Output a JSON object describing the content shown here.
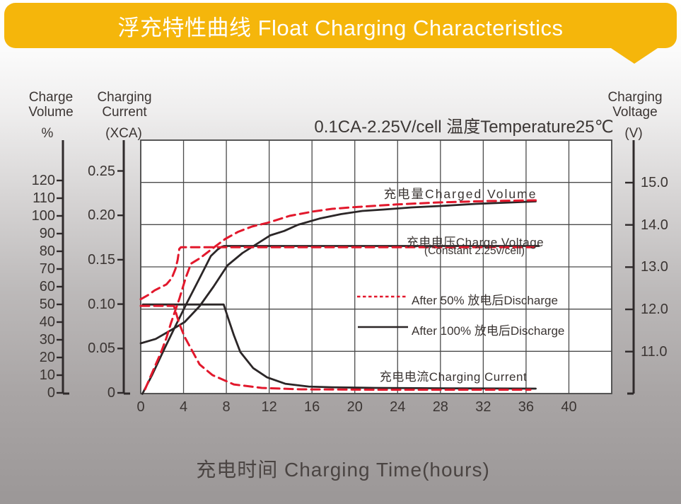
{
  "banner": {
    "title": "浮充特性曲线 Float Charging Characteristics",
    "color": "#f5b60b"
  },
  "subtitle": "0.1CA-2.25V/cell   温度Temperature25℃",
  "axis_headers": {
    "volume": {
      "line1": "Charge",
      "line2": "Volume",
      "unit": "%"
    },
    "current": {
      "line1": "Charging",
      "line2": "Current",
      "unit": "(XCA)"
    },
    "voltage": {
      "line1": "Charging",
      "line2": "Voltage",
      "unit": "(V)"
    }
  },
  "x_axis_title": "充电时间 Charging Time(hours)",
  "colors": {
    "red_curve": "#e2182c",
    "black_curve": "#2b2627",
    "grid": "#4b4b4b"
  },
  "chart_data": {
    "type": "line",
    "title": "浮充特性曲线 Float Charging Characteristics",
    "condition": "0.1CA-2.25V/cell 温度Temperature25℃",
    "x_axis": {
      "label": "充电时间 Charging Time(hours)",
      "ticks": [
        "0",
        "4",
        "8",
        "12",
        "16",
        "20",
        "24",
        "28",
        "32",
        "36",
        "40"
      ],
      "range": [
        0,
        44
      ],
      "unit": "hours"
    },
    "y_axes": {
      "charge_volume": {
        "label": "Charge Volume",
        "unit": "%",
        "ticks": [
          "120",
          "110",
          "100",
          "90",
          "80",
          "70",
          "60",
          "50",
          "40",
          "30",
          "20",
          "10",
          "0"
        ],
        "range": [
          0,
          122
        ]
      },
      "charging_current": {
        "label": "Charging Current",
        "unit": "XCA",
        "ticks": [
          "0.25",
          "0.20",
          "0.15",
          "0.10",
          "0.05",
          "0"
        ],
        "range": [
          0,
          0.285
        ]
      },
      "charging_voltage": {
        "label": "Charging Voltage",
        "unit": "V",
        "ticks": [
          "15.0",
          "14.0",
          "13.0",
          "12.0",
          "11.0"
        ],
        "range": [
          10,
          16
        ]
      }
    },
    "grid": true,
    "legend": [
      {
        "label": "After 50% 放电后Discharge",
        "style": "dashed-red"
      },
      {
        "label": "After 100% 放电后Discharge",
        "style": "solid-black"
      }
    ],
    "annotations": {
      "charged_volume": "充电量Charged Volume",
      "charge_voltage_line1": "充电电压Charge Voltage",
      "charge_voltage_line2": "(Constant 2.25v/cell)",
      "charging_current": "充电电流Charging Current"
    },
    "series": [
      {
        "name": "charged-volume-after-100-discharge",
        "axis": "charge_volume",
        "style": "solid-black",
        "points": [
          [
            0,
            28
          ],
          [
            1.4,
            30.5
          ],
          [
            2.7,
            35
          ],
          [
            4.1,
            40
          ],
          [
            5.5,
            49
          ],
          [
            6.8,
            60
          ],
          [
            8.1,
            72
          ],
          [
            9.5,
            79
          ],
          [
            10.8,
            84
          ],
          [
            12.1,
            89
          ],
          [
            13.4,
            91.5
          ],
          [
            14.7,
            95
          ],
          [
            16.7,
            98.5
          ],
          [
            18.7,
            101
          ],
          [
            20.7,
            102.8
          ],
          [
            22.7,
            103.6
          ],
          [
            25.3,
            104.8
          ],
          [
            28,
            105.6
          ],
          [
            31.3,
            106.8
          ],
          [
            34.6,
            107.6
          ],
          [
            36.9,
            108.2
          ]
        ]
      },
      {
        "name": "charged-volume-after-50-discharge",
        "axis": "charge_volume",
        "style": "dashed-red",
        "points": [
          [
            0.4,
            2
          ],
          [
            0.9,
            9
          ],
          [
            1.4,
            16
          ],
          [
            1.9,
            23
          ],
          [
            2.4,
            31
          ],
          [
            2.8,
            39
          ],
          [
            3.2,
            46
          ],
          [
            3.6,
            53
          ],
          [
            4.2,
            65
          ],
          [
            4.7,
            73
          ],
          [
            5.5,
            76
          ],
          [
            6.8,
            82
          ],
          [
            7.9,
            87
          ],
          [
            9.1,
            91
          ],
          [
            10.4,
            94
          ],
          [
            11.8,
            96
          ],
          [
            13.9,
            100
          ],
          [
            16.1,
            102.5
          ],
          [
            17.9,
            104
          ],
          [
            20.1,
            105
          ],
          [
            23.9,
            106.5
          ],
          [
            27.8,
            107.6
          ],
          [
            32.4,
            108.4
          ],
          [
            36.9,
            108.8
          ]
        ]
      },
      {
        "name": "charge-voltage-after-100-discharge",
        "axis": "charging_voltage",
        "style": "solid-black",
        "points": [
          [
            0.15,
            10.0
          ],
          [
            1.05,
            10.44
          ],
          [
            2.2,
            11.06
          ],
          [
            3.25,
            11.61
          ],
          [
            4.35,
            12.17
          ],
          [
            5.5,
            12.74
          ],
          [
            6.55,
            13.26
          ],
          [
            7.2,
            13.42
          ],
          [
            7.55,
            13.48
          ],
          [
            7.8,
            13.5
          ],
          [
            37.2,
            13.5
          ]
        ]
      },
      {
        "name": "charge-voltage-after-50-discharge",
        "axis": "charging_voltage",
        "style": "dashed-red",
        "points": [
          [
            0,
            12.24
          ],
          [
            0.7,
            12.34
          ],
          [
            1.3,
            12.45
          ],
          [
            2.4,
            12.59
          ],
          [
            2.9,
            12.74
          ],
          [
            3.25,
            12.96
          ],
          [
            3.45,
            13.17
          ],
          [
            3.6,
            13.43
          ],
          [
            3.75,
            13.47
          ],
          [
            36.8,
            13.47
          ]
        ]
      },
      {
        "name": "charging-current-after-100-discharge",
        "axis": "charging_current",
        "style": "solid-black",
        "points": [
          [
            0.2,
            0.0995
          ],
          [
            7.75,
            0.0995
          ],
          [
            8.2,
            0.083
          ],
          [
            8.7,
            0.065
          ],
          [
            9.3,
            0.046
          ],
          [
            10.5,
            0.028
          ],
          [
            11.8,
            0.0175
          ],
          [
            13.5,
            0.0103
          ],
          [
            15.7,
            0.0071
          ],
          [
            17.9,
            0.0063
          ],
          [
            21.9,
            0.0056
          ],
          [
            30,
            0.005
          ],
          [
            36.9,
            0.0048
          ]
        ]
      },
      {
        "name": "charging-current-after-50-discharge",
        "axis": "charging_current",
        "style": "dashed-red",
        "points": [
          [
            0,
            0.098
          ],
          [
            3.1,
            0.098
          ],
          [
            3.6,
            0.078
          ],
          [
            4.1,
            0.063
          ],
          [
            4.6,
            0.052
          ],
          [
            5.5,
            0.032
          ],
          [
            6.7,
            0.02
          ],
          [
            8.7,
            0.0095
          ],
          [
            11.3,
            0.0056
          ],
          [
            15,
            0.004
          ],
          [
            22,
            0.0035
          ],
          [
            36.4,
            0.0035
          ]
        ]
      }
    ]
  }
}
